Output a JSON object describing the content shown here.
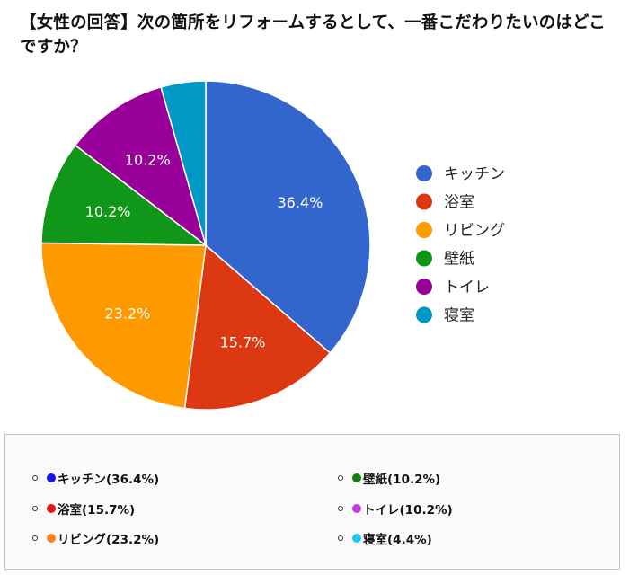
{
  "title": "【女性の回答】次の箇所をリフォームするとして、一番こだわりたいのはどこですか？",
  "chart_data": {
    "type": "pie",
    "title": "【女性の回答】次の箇所をリフォームするとして、一番こだわりたいのはどこですか？",
    "categories": [
      "キッチン",
      "浴室",
      "リビング",
      "壁紙",
      "トイレ",
      "寝室"
    ],
    "values": [
      36.4,
      15.7,
      23.2,
      10.2,
      10.2,
      4.4
    ],
    "slice_labels": [
      "36.4%",
      "15.7%",
      "23.2%",
      "10.2%",
      "10.2%",
      ""
    ],
    "colors": [
      "#3366cc",
      "#dc3912",
      "#ff9900",
      "#109618",
      "#990099",
      "#0099c6"
    ],
    "legend_position": "right"
  },
  "summary": {
    "items": [
      {
        "label": "キッチン(36.4%)",
        "dot_color": "#1515e8"
      },
      {
        "label": "浴室(15.7%)",
        "dot_color": "#e81515"
      },
      {
        "label": "リビング(23.2%)",
        "dot_color": "#ff7f1f"
      },
      {
        "label": "壁紙(10.2%)",
        "dot_color": "#12800f"
      },
      {
        "label": "トイレ(10.2%)",
        "dot_color": "#c43ae0"
      },
      {
        "label": "寝室(4.4%)",
        "dot_color": "#21c5f2"
      }
    ]
  }
}
